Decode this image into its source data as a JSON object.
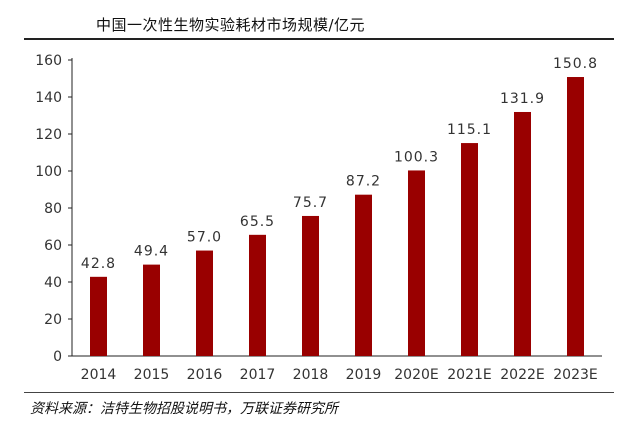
{
  "title": "中国一次性生物实验耗材市场规模/亿元",
  "source": "资料来源：洁特生物招股说明书，万联证券研究所",
  "colors": {
    "bar": "#990000",
    "axis": "#222222",
    "text": "#333333"
  },
  "chart_data": {
    "type": "bar",
    "title": "中国一次性生物实验耗材市场规模/亿元",
    "xlabel": "",
    "ylabel": "",
    "categories": [
      "2014",
      "2015",
      "2016",
      "2017",
      "2018",
      "2019",
      "2020E",
      "2021E",
      "2022E",
      "2023E"
    ],
    "values": [
      42.8,
      49.4,
      57.0,
      65.5,
      75.7,
      87.2,
      100.3,
      115.1,
      131.9,
      150.8
    ],
    "value_labels": [
      "42.8",
      "49.4",
      "57.0",
      "65.5",
      "75.7",
      "87.2",
      "100.3",
      "115.1",
      "131.9",
      "150.8"
    ],
    "ylim": [
      0,
      160
    ],
    "yticks": [
      0,
      20,
      40,
      60,
      80,
      100,
      120,
      140,
      160
    ],
    "grid": false,
    "legend": "none"
  }
}
